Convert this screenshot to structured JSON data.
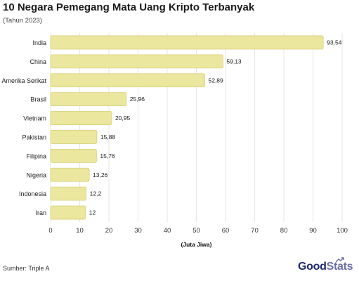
{
  "chart_data": {
    "type": "bar",
    "orientation": "horizontal",
    "title": "10 Negara Pemegang Mata Uang Kripto Terbanyak",
    "subtitle": "(Tahun 2023)",
    "categories": [
      "India",
      "China",
      "Amerika Serikat",
      "Brasil",
      "Vietnam",
      "Pakistan",
      "Filipina",
      "Nigeria",
      "Indonesia",
      "Iran"
    ],
    "values": [
      93.54,
      59.13,
      52.89,
      25.96,
      20.95,
      15.88,
      15.76,
      13.26,
      12.2,
      12
    ],
    "value_labels": [
      "93,54",
      "59,13",
      "52,89",
      "25,96",
      "20,95",
      "15,88",
      "15,76",
      "13,26",
      "12,2",
      "12"
    ],
    "xlabel": "(Juta Jiwa)",
    "ylabel": "",
    "xlim": [
      0,
      100
    ],
    "x_ticks": [
      "0",
      "10",
      "20",
      "30",
      "40",
      "50",
      "60",
      "70",
      "80",
      "90",
      "100"
    ],
    "grid": true,
    "bar_color": "#ece79f",
    "bar_border_color": "#d8d17a"
  },
  "footer": {
    "source": "Sumber: Triple A",
    "brand_part1": "Good",
    "brand_part2": "Stats"
  },
  "brand_icon": "trend-arrow-icon"
}
